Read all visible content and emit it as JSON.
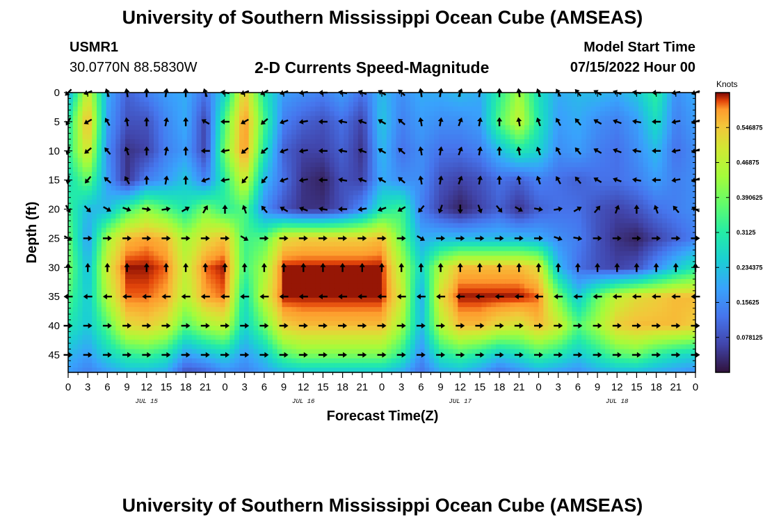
{
  "header": {
    "title": "University of Southern Mississippi Ocean Cube (AMSEAS)",
    "station": "USMR1",
    "coords": "30.0770N  88.5830W",
    "subtitle": "2-D Currents Speed-Magnitude",
    "start_label": "Model Start Time",
    "start_value": "07/15/2022 Hour 00"
  },
  "footer": {
    "title": "University of Southern Mississippi Ocean Cube (AMSEAS)"
  },
  "chart_data": {
    "type": "heatmap",
    "title": "2-D Currents Speed-Magnitude",
    "xlabel": "Forecast Time(Z)",
    "ylabel": "Depth (ft)",
    "x_range_hours": [
      0,
      96
    ],
    "y_range_ft": [
      0,
      48
    ],
    "x_ticks": [
      "0",
      "3",
      "6",
      "9",
      "12",
      "15",
      "18",
      "21",
      "0",
      "3",
      "6",
      "9",
      "12",
      "15",
      "18",
      "21",
      "0",
      "3",
      "6",
      "9",
      "12",
      "15",
      "18",
      "21",
      "0",
      "3",
      "6",
      "9",
      "12",
      "15",
      "18",
      "21",
      "0"
    ],
    "day_labels": [
      {
        "label": "JUL 15",
        "hour": 12
      },
      {
        "label": "JUL 16",
        "hour": 36
      },
      {
        "label": "JUL 17",
        "hour": 60
      },
      {
        "label": "JUL 18",
        "hour": 84
      }
    ],
    "y_ticks": [
      0,
      5,
      10,
      15,
      20,
      25,
      30,
      35,
      40,
      45
    ],
    "colorbar": {
      "unit": "Knots",
      "range": [
        0,
        0.625
      ],
      "labels": [
        "0.546875",
        "0.46875",
        "0.390625",
        "0.3125",
        "0.234375",
        "0.15625",
        "0.078125"
      ],
      "label_values": [
        0.546875,
        0.46875,
        0.390625,
        0.3125,
        0.234375,
        0.15625,
        0.078125
      ]
    },
    "speed_grid": {
      "x_hours": [
        0,
        3,
        6,
        9,
        12,
        15,
        18,
        21,
        24,
        27,
        30,
        33,
        36,
        39,
        42,
        45,
        48,
        51,
        54,
        57,
        60,
        63,
        66,
        69,
        72,
        75,
        78,
        81,
        84,
        87,
        90,
        93,
        96
      ],
      "depths_ft": [
        0,
        5,
        10,
        15,
        20,
        25,
        30,
        35,
        40,
        45,
        48
      ],
      "rows": [
        [
          0.2,
          0.5,
          0.2,
          0.1,
          0.14,
          0.18,
          0.2,
          0.12,
          0.26,
          0.55,
          0.3,
          0.18,
          0.16,
          0.14,
          0.18,
          0.12,
          0.22,
          0.16,
          0.2,
          0.2,
          0.22,
          0.2,
          0.32,
          0.44,
          0.28,
          0.2,
          0.22,
          0.22,
          0.2,
          0.24,
          0.32,
          0.16,
          0.2
        ],
        [
          0.3,
          0.58,
          0.18,
          0.08,
          0.08,
          0.15,
          0.2,
          0.06,
          0.36,
          0.6,
          0.35,
          0.14,
          0.1,
          0.08,
          0.12,
          0.06,
          0.24,
          0.14,
          0.18,
          0.16,
          0.16,
          0.18,
          0.36,
          0.48,
          0.3,
          0.18,
          0.2,
          0.16,
          0.14,
          0.18,
          0.28,
          0.14,
          0.18
        ],
        [
          0.32,
          0.52,
          0.16,
          0.04,
          0.06,
          0.14,
          0.18,
          0.06,
          0.4,
          0.6,
          0.3,
          0.1,
          0.06,
          0.06,
          0.1,
          0.04,
          0.22,
          0.12,
          0.16,
          0.12,
          0.12,
          0.14,
          0.22,
          0.3,
          0.26,
          0.16,
          0.18,
          0.14,
          0.12,
          0.16,
          0.22,
          0.12,
          0.16
        ],
        [
          0.28,
          0.38,
          0.18,
          0.04,
          0.14,
          0.18,
          0.24,
          0.14,
          0.32,
          0.5,
          0.22,
          0.12,
          0.04,
          0.02,
          0.08,
          0.06,
          0.2,
          0.16,
          0.16,
          0.08,
          0.06,
          0.08,
          0.12,
          0.1,
          0.14,
          0.12,
          0.1,
          0.12,
          0.12,
          0.14,
          0.18,
          0.14,
          0.16
        ],
        [
          0.34,
          0.22,
          0.22,
          0.34,
          0.42,
          0.36,
          0.3,
          0.4,
          0.32,
          0.36,
          0.16,
          0.08,
          0.04,
          0.04,
          0.08,
          0.16,
          0.3,
          0.34,
          0.14,
          0.06,
          0.02,
          0.06,
          0.1,
          0.04,
          0.1,
          0.12,
          0.12,
          0.08,
          0.06,
          0.08,
          0.12,
          0.14,
          0.16
        ],
        [
          0.38,
          0.18,
          0.44,
          0.56,
          0.58,
          0.56,
          0.44,
          0.52,
          0.56,
          0.34,
          0.36,
          0.52,
          0.54,
          0.54,
          0.54,
          0.54,
          0.56,
          0.38,
          0.2,
          0.22,
          0.22,
          0.22,
          0.22,
          0.22,
          0.2,
          0.16,
          0.14,
          0.08,
          0.04,
          0.02,
          0.06,
          0.1,
          0.14
        ],
        [
          0.4,
          0.22,
          0.5,
          0.62,
          0.62,
          0.6,
          0.48,
          0.6,
          0.62,
          0.34,
          0.44,
          0.62,
          0.62,
          0.62,
          0.62,
          0.62,
          0.62,
          0.46,
          0.26,
          0.46,
          0.56,
          0.56,
          0.56,
          0.56,
          0.52,
          0.22,
          0.12,
          0.08,
          0.06,
          0.08,
          0.16,
          0.24,
          0.3
        ],
        [
          0.36,
          0.24,
          0.46,
          0.6,
          0.6,
          0.58,
          0.46,
          0.58,
          0.6,
          0.28,
          0.48,
          0.62,
          0.62,
          0.62,
          0.62,
          0.62,
          0.62,
          0.5,
          0.2,
          0.52,
          0.62,
          0.62,
          0.62,
          0.62,
          0.6,
          0.4,
          0.24,
          0.38,
          0.48,
          0.52,
          0.54,
          0.56,
          0.56
        ],
        [
          0.3,
          0.24,
          0.36,
          0.52,
          0.54,
          0.5,
          0.36,
          0.44,
          0.48,
          0.26,
          0.38,
          0.54,
          0.56,
          0.56,
          0.56,
          0.56,
          0.56,
          0.44,
          0.22,
          0.46,
          0.56,
          0.56,
          0.52,
          0.5,
          0.56,
          0.5,
          0.36,
          0.44,
          0.54,
          0.56,
          0.56,
          0.56,
          0.54
        ],
        [
          0.22,
          0.18,
          0.26,
          0.32,
          0.34,
          0.3,
          0.18,
          0.22,
          0.26,
          0.18,
          0.24,
          0.36,
          0.4,
          0.4,
          0.4,
          0.4,
          0.4,
          0.32,
          0.16,
          0.3,
          0.34,
          0.3,
          0.24,
          0.28,
          0.34,
          0.3,
          0.24,
          0.3,
          0.36,
          0.38,
          0.32,
          0.28,
          0.26
        ],
        [
          0.18,
          0.14,
          0.18,
          0.22,
          0.22,
          0.2,
          0.08,
          0.1,
          0.16,
          0.14,
          0.18,
          0.22,
          0.24,
          0.24,
          0.24,
          0.24,
          0.24,
          0.2,
          0.12,
          0.2,
          0.22,
          0.18,
          0.12,
          0.16,
          0.2,
          0.18,
          0.16,
          0.2,
          0.22,
          0.22,
          0.2,
          0.18,
          0.16
        ]
      ]
    },
    "vectors": {
      "x_hours": [
        0,
        3,
        6,
        9,
        12,
        15,
        18,
        21,
        24,
        27,
        30,
        33,
        36,
        39,
        42,
        45,
        48,
        51,
        54,
        57,
        60,
        63,
        66,
        69,
        72,
        75,
        78,
        81,
        84,
        87,
        90,
        93,
        96
      ],
      "depths_ft": [
        0,
        5,
        10,
        15,
        20,
        25,
        30,
        35,
        40,
        45
      ],
      "direction_deg_rows": [
        [
          225,
          200,
          110,
          100,
          90,
          80,
          90,
          110,
          170,
          200,
          210,
          200,
          190,
          180,
          170,
          160,
          150,
          140,
          100,
          80,
          70,
          80,
          90,
          100,
          110,
          120,
          130,
          150,
          160,
          170,
          180,
          190,
          200
        ],
        [
          240,
          210,
          120,
          100,
          90,
          80,
          90,
          150,
          180,
          210,
          220,
          200,
          190,
          180,
          170,
          160,
          150,
          140,
          100,
          80,
          70,
          80,
          90,
          100,
          110,
          120,
          130,
          150,
          160,
          170,
          180,
          190,
          200
        ],
        [
          250,
          220,
          130,
          110,
          90,
          80,
          90,
          180,
          190,
          220,
          220,
          200,
          190,
          180,
          170,
          160,
          150,
          140,
          100,
          80,
          70,
          80,
          90,
          100,
          110,
          120,
          130,
          150,
          160,
          170,
          180,
          190,
          200
        ],
        [
          260,
          230,
          140,
          120,
          90,
          80,
          90,
          200,
          190,
          230,
          230,
          200,
          190,
          180,
          170,
          160,
          150,
          140,
          100,
          80,
          70,
          80,
          90,
          100,
          110,
          120,
          130,
          150,
          160,
          170,
          180,
          190,
          200
        ],
        [
          300,
          315,
          330,
          340,
          350,
          10,
          30,
          60,
          90,
          110,
          130,
          150,
          160,
          170,
          180,
          190,
          200,
          210,
          230,
          250,
          270,
          290,
          310,
          330,
          350,
          10,
          30,
          50,
          70,
          90,
          110,
          130,
          150
        ],
        [
          330,
          0,
          0,
          0,
          0,
          0,
          0,
          0,
          0,
          330,
          0,
          0,
          0,
          0,
          0,
          0,
          0,
          0,
          330,
          0,
          0,
          0,
          0,
          0,
          0,
          340,
          350,
          0,
          0,
          0,
          0,
          0,
          0
        ],
        [
          90,
          90,
          90,
          90,
          90,
          90,
          90,
          90,
          90,
          90,
          90,
          90,
          90,
          90,
          90,
          90,
          90,
          90,
          90,
          90,
          90,
          90,
          90,
          90,
          90,
          90,
          90,
          90,
          90,
          90,
          90,
          90,
          90
        ],
        [
          180,
          180,
          180,
          180,
          180,
          180,
          180,
          180,
          180,
          180,
          180,
          180,
          180,
          180,
          180,
          180,
          180,
          180,
          180,
          180,
          180,
          180,
          180,
          180,
          180,
          180,
          180,
          180,
          180,
          180,
          180,
          180,
          180
        ],
        [
          0,
          0,
          0,
          0,
          0,
          0,
          0,
          0,
          0,
          0,
          0,
          0,
          0,
          0,
          0,
          0,
          0,
          0,
          0,
          0,
          0,
          0,
          0,
          0,
          0,
          0,
          0,
          0,
          0,
          0,
          0,
          0,
          0
        ],
        [
          0,
          0,
          0,
          0,
          0,
          0,
          0,
          0,
          0,
          0,
          0,
          0,
          0,
          0,
          0,
          0,
          0,
          0,
          0,
          0,
          0,
          0,
          0,
          0,
          0,
          0,
          0,
          0,
          0,
          0,
          0,
          0,
          0
        ]
      ]
    }
  }
}
